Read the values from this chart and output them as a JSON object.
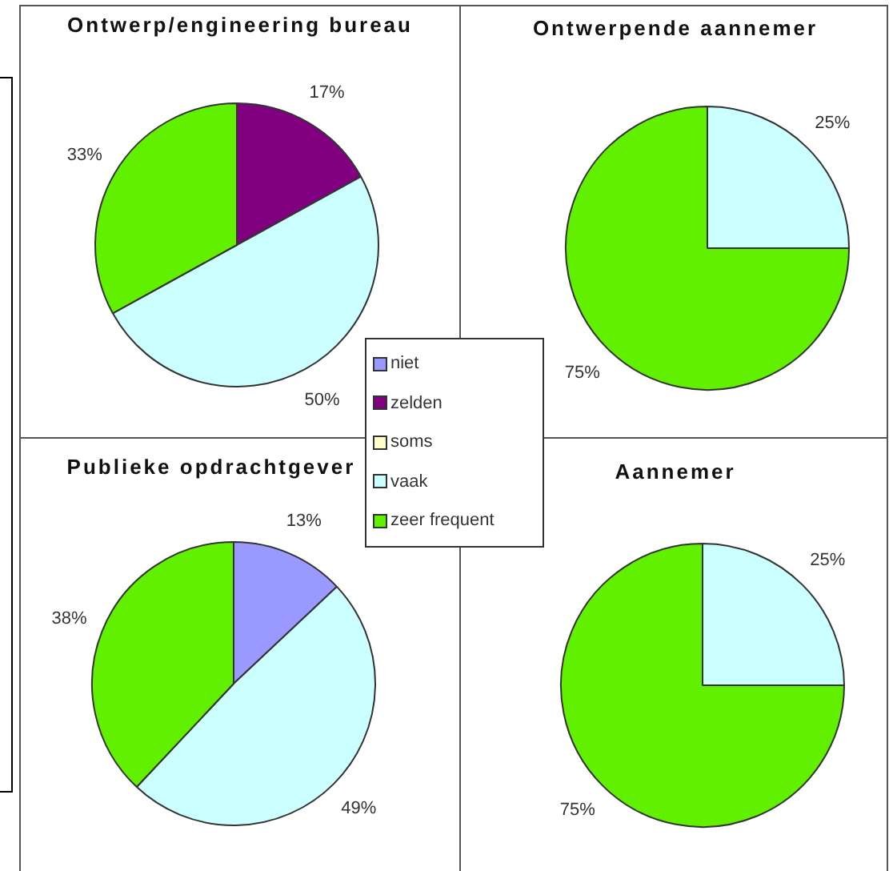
{
  "chart_data": [
    {
      "type": "pie",
      "title": "Ontwerp/engineering bureau",
      "categories": [
        "niet",
        "zelden",
        "soms",
        "vaak",
        "zeer frequent"
      ],
      "values": [
        0,
        17,
        0,
        50,
        33
      ],
      "colors": [
        "#9999ff",
        "#800080",
        "#ffffcc",
        "#ccffff",
        "#60f000"
      ],
      "value_labels": [
        null,
        "17%",
        null,
        "50%",
        "33%"
      ],
      "legend": "bottom right"
    },
    {
      "type": "pie",
      "title": "Ontwerpende aannemer",
      "categories": [
        null,
        null
      ],
      "values": [
        25,
        75
      ],
      "colors": [
        "#ccffff",
        "#60f000"
      ],
      "value_labels": [
        "25%",
        "75%"
      ]
    },
    {
      "type": "pie",
      "title": "Publieke opdrachtgever",
      "categories": [
        null,
        null,
        null
      ],
      "values": [
        13,
        49,
        38
      ],
      "colors": [
        "#9999ff",
        "#ccffff",
        "#60f000"
      ],
      "value_labels": [
        "13%",
        "49%",
        "38%"
      ]
    },
    {
      "type": "pie",
      "title": "Aannemer",
      "categories": [
        null,
        null
      ],
      "values": [
        25,
        75
      ],
      "colors": [
        "#ccffff",
        "#60f000"
      ],
      "value_labels": [
        "25%",
        "75%"
      ]
    }
  ]
}
